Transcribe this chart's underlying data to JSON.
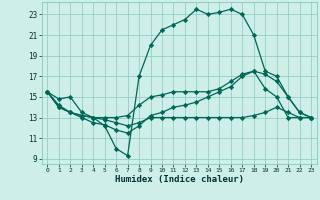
{
  "xlabel": "Humidex (Indice chaleur)",
  "background_color": "#ceeee8",
  "grid_color": "#88c8c0",
  "line_color": "#006655",
  "x_ticks": [
    0,
    1,
    2,
    3,
    4,
    5,
    6,
    7,
    8,
    9,
    10,
    11,
    12,
    13,
    14,
    15,
    16,
    17,
    18,
    19,
    20,
    21,
    22,
    23
  ],
  "y_ticks": [
    9,
    11,
    13,
    15,
    17,
    19,
    21,
    23
  ],
  "ylim": [
    8.5,
    24.2
  ],
  "xlim": [
    -0.5,
    23.5
  ],
  "series": {
    "main": [
      15.5,
      14.8,
      15.0,
      13.5,
      13.0,
      12.2,
      10.0,
      9.3,
      17.0,
      20.0,
      21.5,
      22.0,
      22.5,
      23.5,
      23.0,
      23.2,
      23.5,
      23.0,
      21.0,
      17.5,
      17.0,
      15.0,
      13.5,
      13.0
    ],
    "line2": [
      15.5,
      14.2,
      13.5,
      13.2,
      13.0,
      13.0,
      13.0,
      13.2,
      14.2,
      15.0,
      15.2,
      15.5,
      15.5,
      15.5,
      15.5,
      15.8,
      16.5,
      17.2,
      17.5,
      17.2,
      16.5,
      15.0,
      13.5,
      13.0
    ],
    "line3": [
      15.5,
      14.0,
      13.5,
      13.2,
      13.0,
      12.8,
      12.5,
      12.2,
      12.5,
      13.0,
      13.0,
      13.0,
      13.0,
      13.0,
      13.0,
      13.0,
      13.0,
      13.0,
      13.2,
      13.5,
      14.0,
      13.5,
      13.0,
      13.0
    ],
    "line4": [
      15.5,
      14.0,
      13.5,
      13.0,
      12.5,
      12.3,
      11.8,
      11.5,
      12.2,
      13.2,
      13.5,
      14.0,
      14.2,
      14.5,
      15.0,
      15.5,
      16.0,
      17.0,
      17.5,
      15.8,
      15.0,
      13.0,
      13.0,
      13.0
    ]
  },
  "marker": "D",
  "markersize": 2.2,
  "linewidth": 0.9
}
